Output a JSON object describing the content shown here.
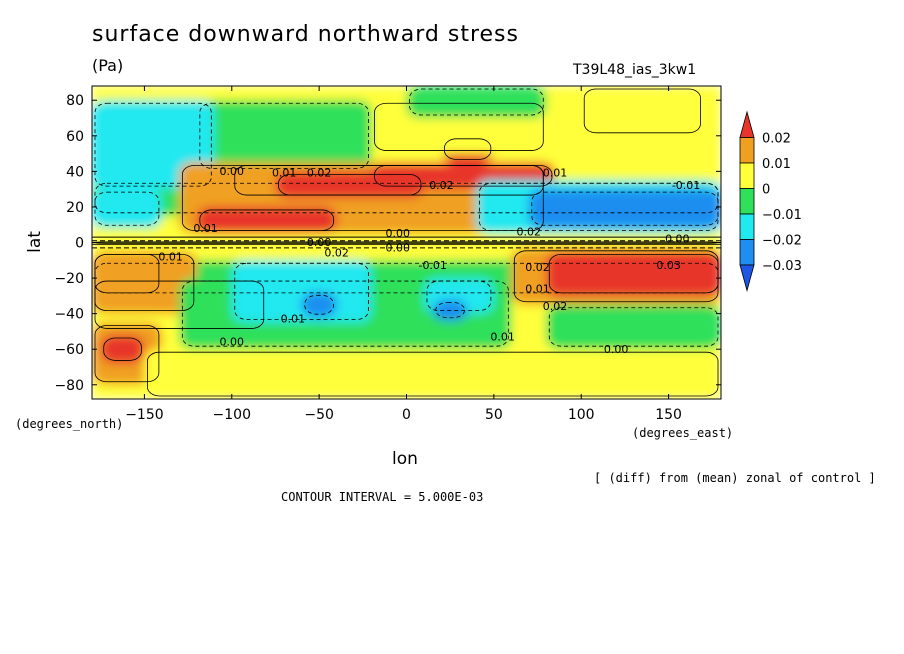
{
  "chart_data": {
    "type": "heatmap",
    "title": "surface downward northward stress",
    "units": "(Pa)",
    "run_id": "T39L48_ias_3kw1",
    "xlabel": "lon",
    "ylabel": "lat",
    "x_units": "(degrees_east)",
    "y_units": "(degrees_north)",
    "xlim": [
      -180,
      180
    ],
    "ylim": [
      -88,
      88
    ],
    "x_ticks": [
      -150,
      -100,
      -50,
      0,
      50,
      100,
      150
    ],
    "y_ticks": [
      80,
      60,
      40,
      20,
      0,
      -20,
      -40,
      -60,
      -80
    ],
    "x_tick_labels": [
      "-150",
      "-100",
      "-50",
      "0",
      "50",
      "100",
      "150"
    ],
    "y_tick_labels": [
      "80",
      "60",
      "40",
      "20",
      "0",
      "-20",
      "-40",
      "-60",
      "-80"
    ],
    "note": "[ (diff) from (mean) zonal of control ]",
    "contour_interval": "CONTOUR INTERVAL = 5.000E-03",
    "colorbar": {
      "levels": [
        -0.03,
        -0.02,
        -0.01,
        0,
        0.01,
        0.02
      ],
      "labels": [
        "0.02",
        "0.01",
        "0",
        "−0.01",
        "−0.02",
        "−0.03"
      ],
      "colors": [
        "#e8352c",
        "#f0a020",
        "#ffff3a",
        "#2ee05a",
        "#22e8f0",
        "#1e8ef0",
        "#1e56e6"
      ]
    },
    "regions": [
      {
        "lon": [
          -180,
          180
        ],
        "lat": [
          -88,
          88
        ],
        "value": 0.005,
        "label": "yellow"
      },
      {
        "lon": [
          -180,
          180
        ],
        "lat": [
          -30,
          -10
        ],
        "value": -0.005,
        "label": "green"
      },
      {
        "lon": [
          -180,
          180
        ],
        "lat": [
          15,
          35
        ],
        "value": -0.005,
        "label": "green"
      },
      {
        "lon": [
          -180,
          -80
        ],
        "lat": [
          -50,
          -20
        ],
        "value": 0.005,
        "label": "yellow"
      },
      {
        "lon": [
          -120,
          -20
        ],
        "lat": [
          40,
          80
        ],
        "value": -0.005,
        "label": "green"
      },
      {
        "lon": [
          -180,
          -110
        ],
        "lat": [
          30,
          80
        ],
        "value": -0.015,
        "label": "cyan"
      },
      {
        "lon": [
          -180,
          -140
        ],
        "lat": [
          8,
          30
        ],
        "value": -0.015,
        "label": "cyan"
      },
      {
        "lon": [
          -130,
          80
        ],
        "lat": [
          5,
          45
        ],
        "value": 0.015,
        "label": "orange"
      },
      {
        "lon": [
          -100,
          80
        ],
        "lat": [
          25,
          45
        ],
        "value": 0.015,
        "label": "orange"
      },
      {
        "lon": [
          -120,
          -40
        ],
        "lat": [
          5,
          20
        ],
        "value": 0.025,
        "label": "red"
      },
      {
        "lon": [
          -75,
          10
        ],
        "lat": [
          25,
          40
        ],
        "value": 0.025,
        "label": "red"
      },
      {
        "lon": [
          -20,
          85
        ],
        "lat": [
          30,
          45
        ],
        "value": 0.025,
        "label": "red"
      },
      {
        "lon": [
          20,
          50
        ],
        "lat": [
          45,
          60
        ],
        "value": 0.025,
        "label": "red"
      },
      {
        "lon": [
          -20,
          80
        ],
        "lat": [
          50,
          80
        ],
        "value": 0.005,
        "label": "yellow"
      },
      {
        "lon": [
          0,
          80
        ],
        "lat": [
          70,
          88
        ],
        "value": -0.005,
        "label": "green"
      },
      {
        "lon": [
          40,
          180
        ],
        "lat": [
          5,
          35
        ],
        "value": -0.015,
        "label": "cyan"
      },
      {
        "lon": [
          70,
          180
        ],
        "lat": [
          8,
          30
        ],
        "value": -0.025,
        "label": "blue"
      },
      {
        "lon": [
          100,
          170
        ],
        "lat": [
          60,
          88
        ],
        "value": 0.005,
        "label": "yellow"
      },
      {
        "lon": [
          -180,
          -140
        ],
        "lat": [
          -30,
          -5
        ],
        "value": 0.025,
        "label": "red"
      },
      {
        "lon": [
          -180,
          -120
        ],
        "lat": [
          -40,
          -5
        ],
        "value": 0.015,
        "label": "orange"
      },
      {
        "lon": [
          -130,
          60
        ],
        "lat": [
          -60,
          -20
        ],
        "value": -0.005,
        "label": "green"
      },
      {
        "lon": [
          -100,
          -20
        ],
        "lat": [
          -45,
          -10
        ],
        "value": -0.015,
        "label": "cyan"
      },
      {
        "lon": [
          10,
          50
        ],
        "lat": [
          -40,
          -20
        ],
        "value": -0.015,
        "label": "cyan"
      },
      {
        "lon": [
          -60,
          -40
        ],
        "lat": [
          -42,
          -28
        ],
        "value": -0.025,
        "label": "blue"
      },
      {
        "lon": [
          15,
          35
        ],
        "lat": [
          -44,
          -32
        ],
        "value": -0.025,
        "label": "blue"
      },
      {
        "lon": [
          60,
          180
        ],
        "lat": [
          -35,
          -3
        ],
        "value": 0.015,
        "label": "orange"
      },
      {
        "lon": [
          80,
          180
        ],
        "lat": [
          -30,
          -5
        ],
        "value": 0.025,
        "label": "red"
      },
      {
        "lon": [
          -180,
          -140
        ],
        "lat": [
          -80,
          -45
        ],
        "value": 0.015,
        "label": "orange"
      },
      {
        "lon": [
          -175,
          -150
        ],
        "lat": [
          -68,
          -52
        ],
        "value": 0.025,
        "label": "red"
      },
      {
        "lon": [
          -150,
          180
        ],
        "lat": [
          -88,
          -60
        ],
        "value": 0.005,
        "label": "yellow"
      },
      {
        "lon": [
          80,
          180
        ],
        "lat": [
          -60,
          -35
        ],
        "value": -0.005,
        "label": "green"
      },
      {
        "lon": [
          -180,
          180
        ],
        "lat": [
          -2,
          2
        ],
        "value": 0.005,
        "label": "yellow"
      }
    ],
    "contour_labels": [
      {
        "lon": -100,
        "lat": 38,
        "text": "0.00"
      },
      {
        "lon": -70,
        "lat": 37,
        "text": "0.01"
      },
      {
        "lon": -50,
        "lat": 37,
        "text": "0.02"
      },
      {
        "lon": 20,
        "lat": 30,
        "text": "0.02"
      },
      {
        "lon": 85,
        "lat": 37,
        "text": "0.01"
      },
      {
        "lon": 160,
        "lat": 30,
        "text": "-0.01"
      },
      {
        "lon": -115,
        "lat": 6,
        "text": "0.01"
      },
      {
        "lon": -50,
        "lat": -2,
        "text": "0.00"
      },
      {
        "lon": -5,
        "lat": 3,
        "text": "0.00"
      },
      {
        "lon": 70,
        "lat": 4,
        "text": "0.02"
      },
      {
        "lon": 155,
        "lat": 0,
        "text": "0.00"
      },
      {
        "lon": -135,
        "lat": -10,
        "text": "0.01"
      },
      {
        "lon": -40,
        "lat": -8,
        "text": "0.02"
      },
      {
        "lon": -5,
        "lat": -5,
        "text": "0.00"
      },
      {
        "lon": 15,
        "lat": -15,
        "text": "-0.01"
      },
      {
        "lon": 75,
        "lat": -16,
        "text": "0.02"
      },
      {
        "lon": 150,
        "lat": -15,
        "text": "0.03"
      },
      {
        "lon": 75,
        "lat": -28,
        "text": "0.01"
      },
      {
        "lon": 85,
        "lat": -38,
        "text": "0.02"
      },
      {
        "lon": -65,
        "lat": -45,
        "text": "0.01"
      },
      {
        "lon": -100,
        "lat": -58,
        "text": "0.00"
      },
      {
        "lon": 55,
        "lat": -55,
        "text": "0.01"
      },
      {
        "lon": 120,
        "lat": -62,
        "text": "0.00"
      }
    ]
  }
}
